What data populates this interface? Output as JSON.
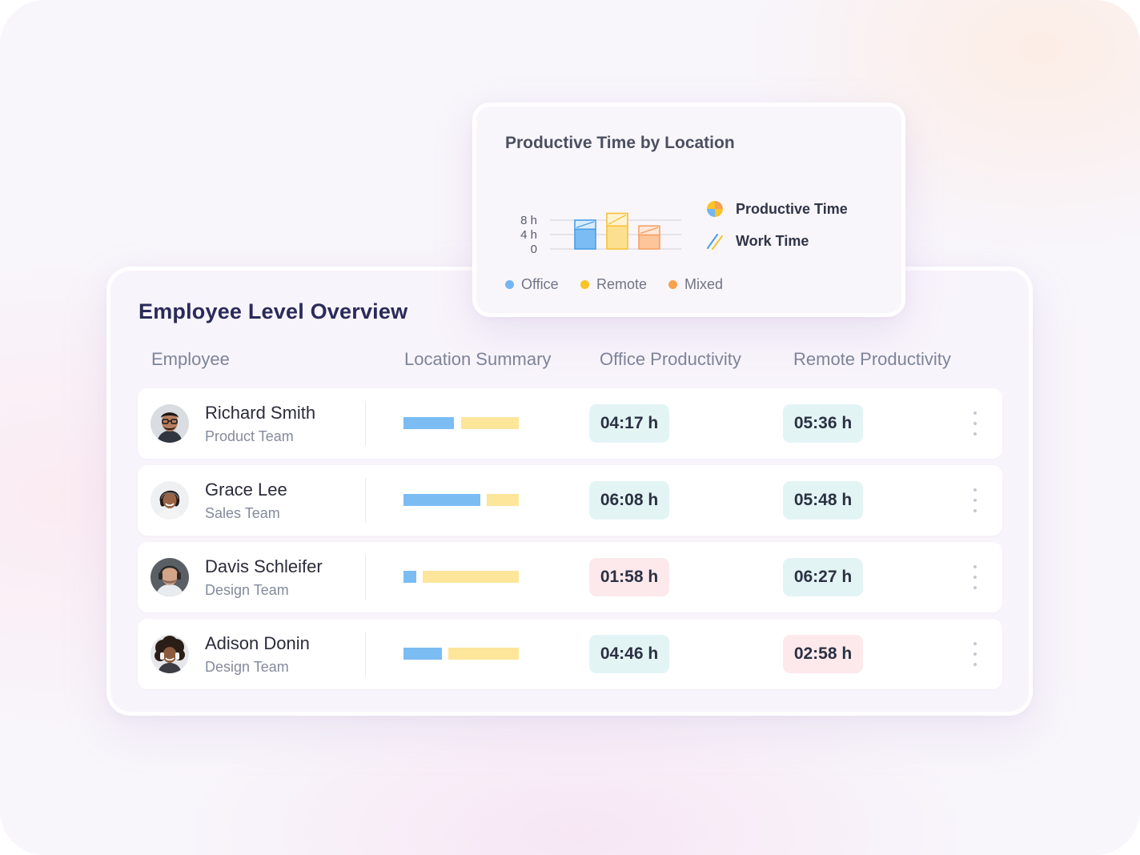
{
  "overview": {
    "title": "Employee Level Overview",
    "columns": [
      "Employee",
      "Location Summary",
      "Office Productivity",
      "Remote Productivity"
    ],
    "rows": [
      {
        "name": "Richard Smith",
        "team": "Product Team",
        "office_share": 0.44,
        "remote_share": 0.5,
        "office_time": "04:17 h",
        "office_status": "good",
        "remote_time": "05:36 h",
        "remote_status": "good",
        "avatar": "avatar-man-glasses"
      },
      {
        "name": "Grace Lee",
        "team": "Sales Team",
        "office_share": 0.67,
        "remote_share": 0.28,
        "office_time": "06:08 h",
        "office_status": "good",
        "remote_time": "05:48 h",
        "remote_status": "good",
        "avatar": "avatar-woman-headset"
      },
      {
        "name": "Davis Schleifer",
        "team": "Design Team",
        "office_share": 0.11,
        "remote_share": 0.83,
        "office_time": "01:58 h",
        "office_status": "bad",
        "remote_time": "06:27 h",
        "remote_status": "good",
        "avatar": "avatar-man-headset"
      },
      {
        "name": "Adison Donin",
        "team": "Design Team",
        "office_share": 0.33,
        "remote_share": 0.61,
        "office_time": "04:46 h",
        "office_status": "good",
        "remote_time": "02:58 h",
        "remote_status": "bad",
        "avatar": "avatar-woman-curly"
      }
    ]
  },
  "chart_data": {
    "type": "bar",
    "title": "Productive Time by Location",
    "categories": [
      "Office",
      "Remote",
      "Mixed"
    ],
    "series": [
      {
        "name": "Productive Time",
        "values": [
          5.5,
          6.4,
          3.9
        ]
      },
      {
        "name": "Work Time",
        "values": [
          8.0,
          9.9,
          6.4
        ]
      }
    ],
    "y_ticks": [
      "8 h",
      "4 h",
      "0"
    ],
    "ylim": [
      0,
      10
    ],
    "legend_right": [
      "Productive Time",
      "Work Time"
    ],
    "legend_bottom": [
      "Office",
      "Remote",
      "Mixed"
    ],
    "colors": {
      "Office": {
        "fill": "#7bbcf3",
        "stroke": "#4a9ee8",
        "top": "#d9ecfc"
      },
      "Remote": {
        "fill": "#fde08f",
        "stroke": "#f6c238",
        "top": "#fff3cf"
      },
      "Mixed": {
        "fill": "#fcc59a",
        "stroke": "#f6a266",
        "top": "#fee7d6"
      }
    },
    "dot_colors": {
      "Office": "#74b6f0",
      "Remote": "#f8c427",
      "Mixed": "#f6a24f"
    },
    "grid": true
  },
  "colors": {
    "status_good": "#e3f4f5",
    "status_bad": "#fde9ec",
    "bar_office": "#7bbcf3",
    "bar_remote": "#fde59a"
  }
}
